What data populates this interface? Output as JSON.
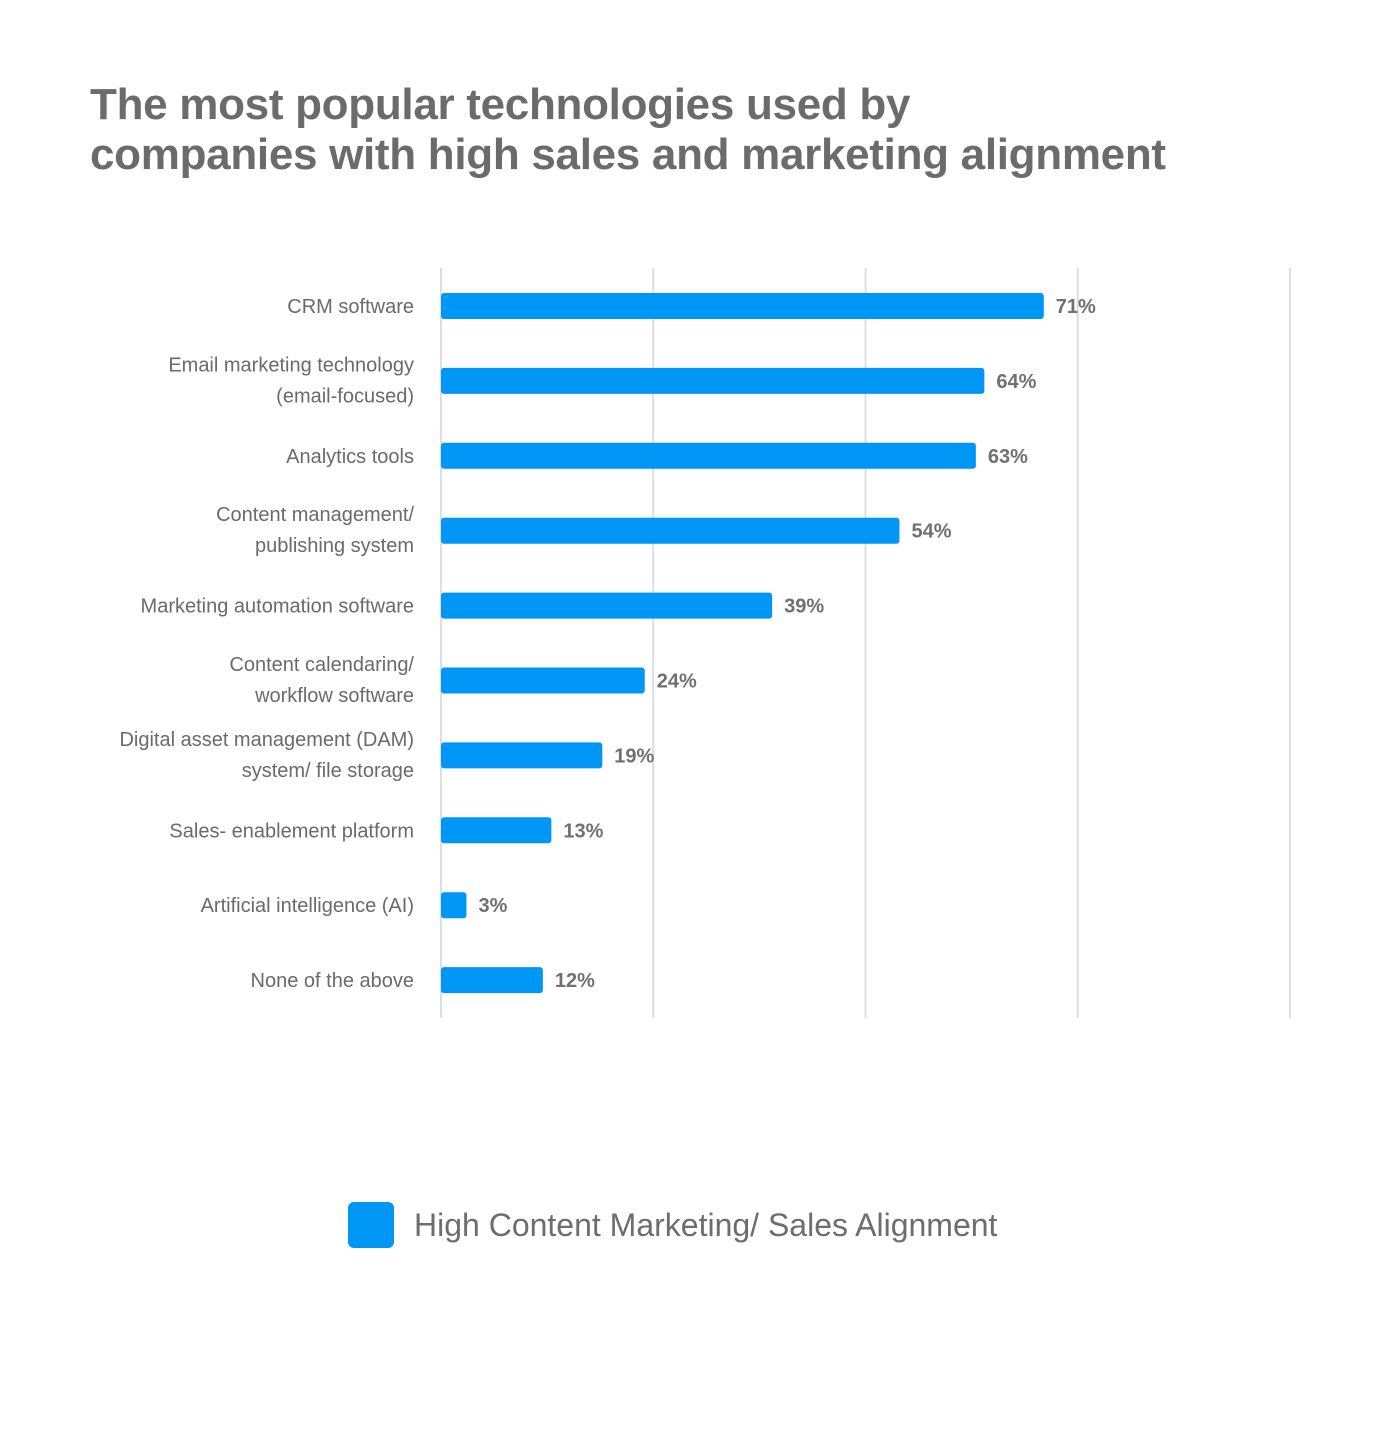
{
  "colors": {
    "bar": "#0096f5",
    "grid": "#dcdde8",
    "text": "#6d6d6d"
  },
  "chart_data": {
    "type": "bar",
    "orientation": "horizontal",
    "title": [
      "The most popular technologies used by",
      "companies with high sales and marketing alignment"
    ],
    "categories": [
      [
        "CRM software"
      ],
      [
        "Email marketing technology",
        "(email-focused)"
      ],
      [
        "Analytics tools"
      ],
      [
        "Content management/",
        "publishing system"
      ],
      [
        "Marketing automation software"
      ],
      [
        "Content calendaring/",
        "workflow software"
      ],
      [
        "Digital asset management (DAM)",
        "system/ file storage"
      ],
      [
        "Sales- enablement platform"
      ],
      [
        "Artificial intelligence (AI)"
      ],
      [
        "None of the above"
      ]
    ],
    "series": [
      {
        "name": "High Content Marketing/ Sales Alignment",
        "values": [
          71,
          64,
          63,
          54,
          39,
          24,
          19,
          13,
          3,
          12
        ],
        "labels": [
          "71%",
          "64%",
          "63%",
          "54%",
          "39%",
          "24%",
          "19%",
          "13%",
          "3%",
          "12%"
        ]
      }
    ],
    "xlim": [
      0,
      100
    ],
    "gridlines": [
      0,
      25,
      50,
      75,
      100
    ],
    "grid": true,
    "legend": "bottom-center"
  }
}
